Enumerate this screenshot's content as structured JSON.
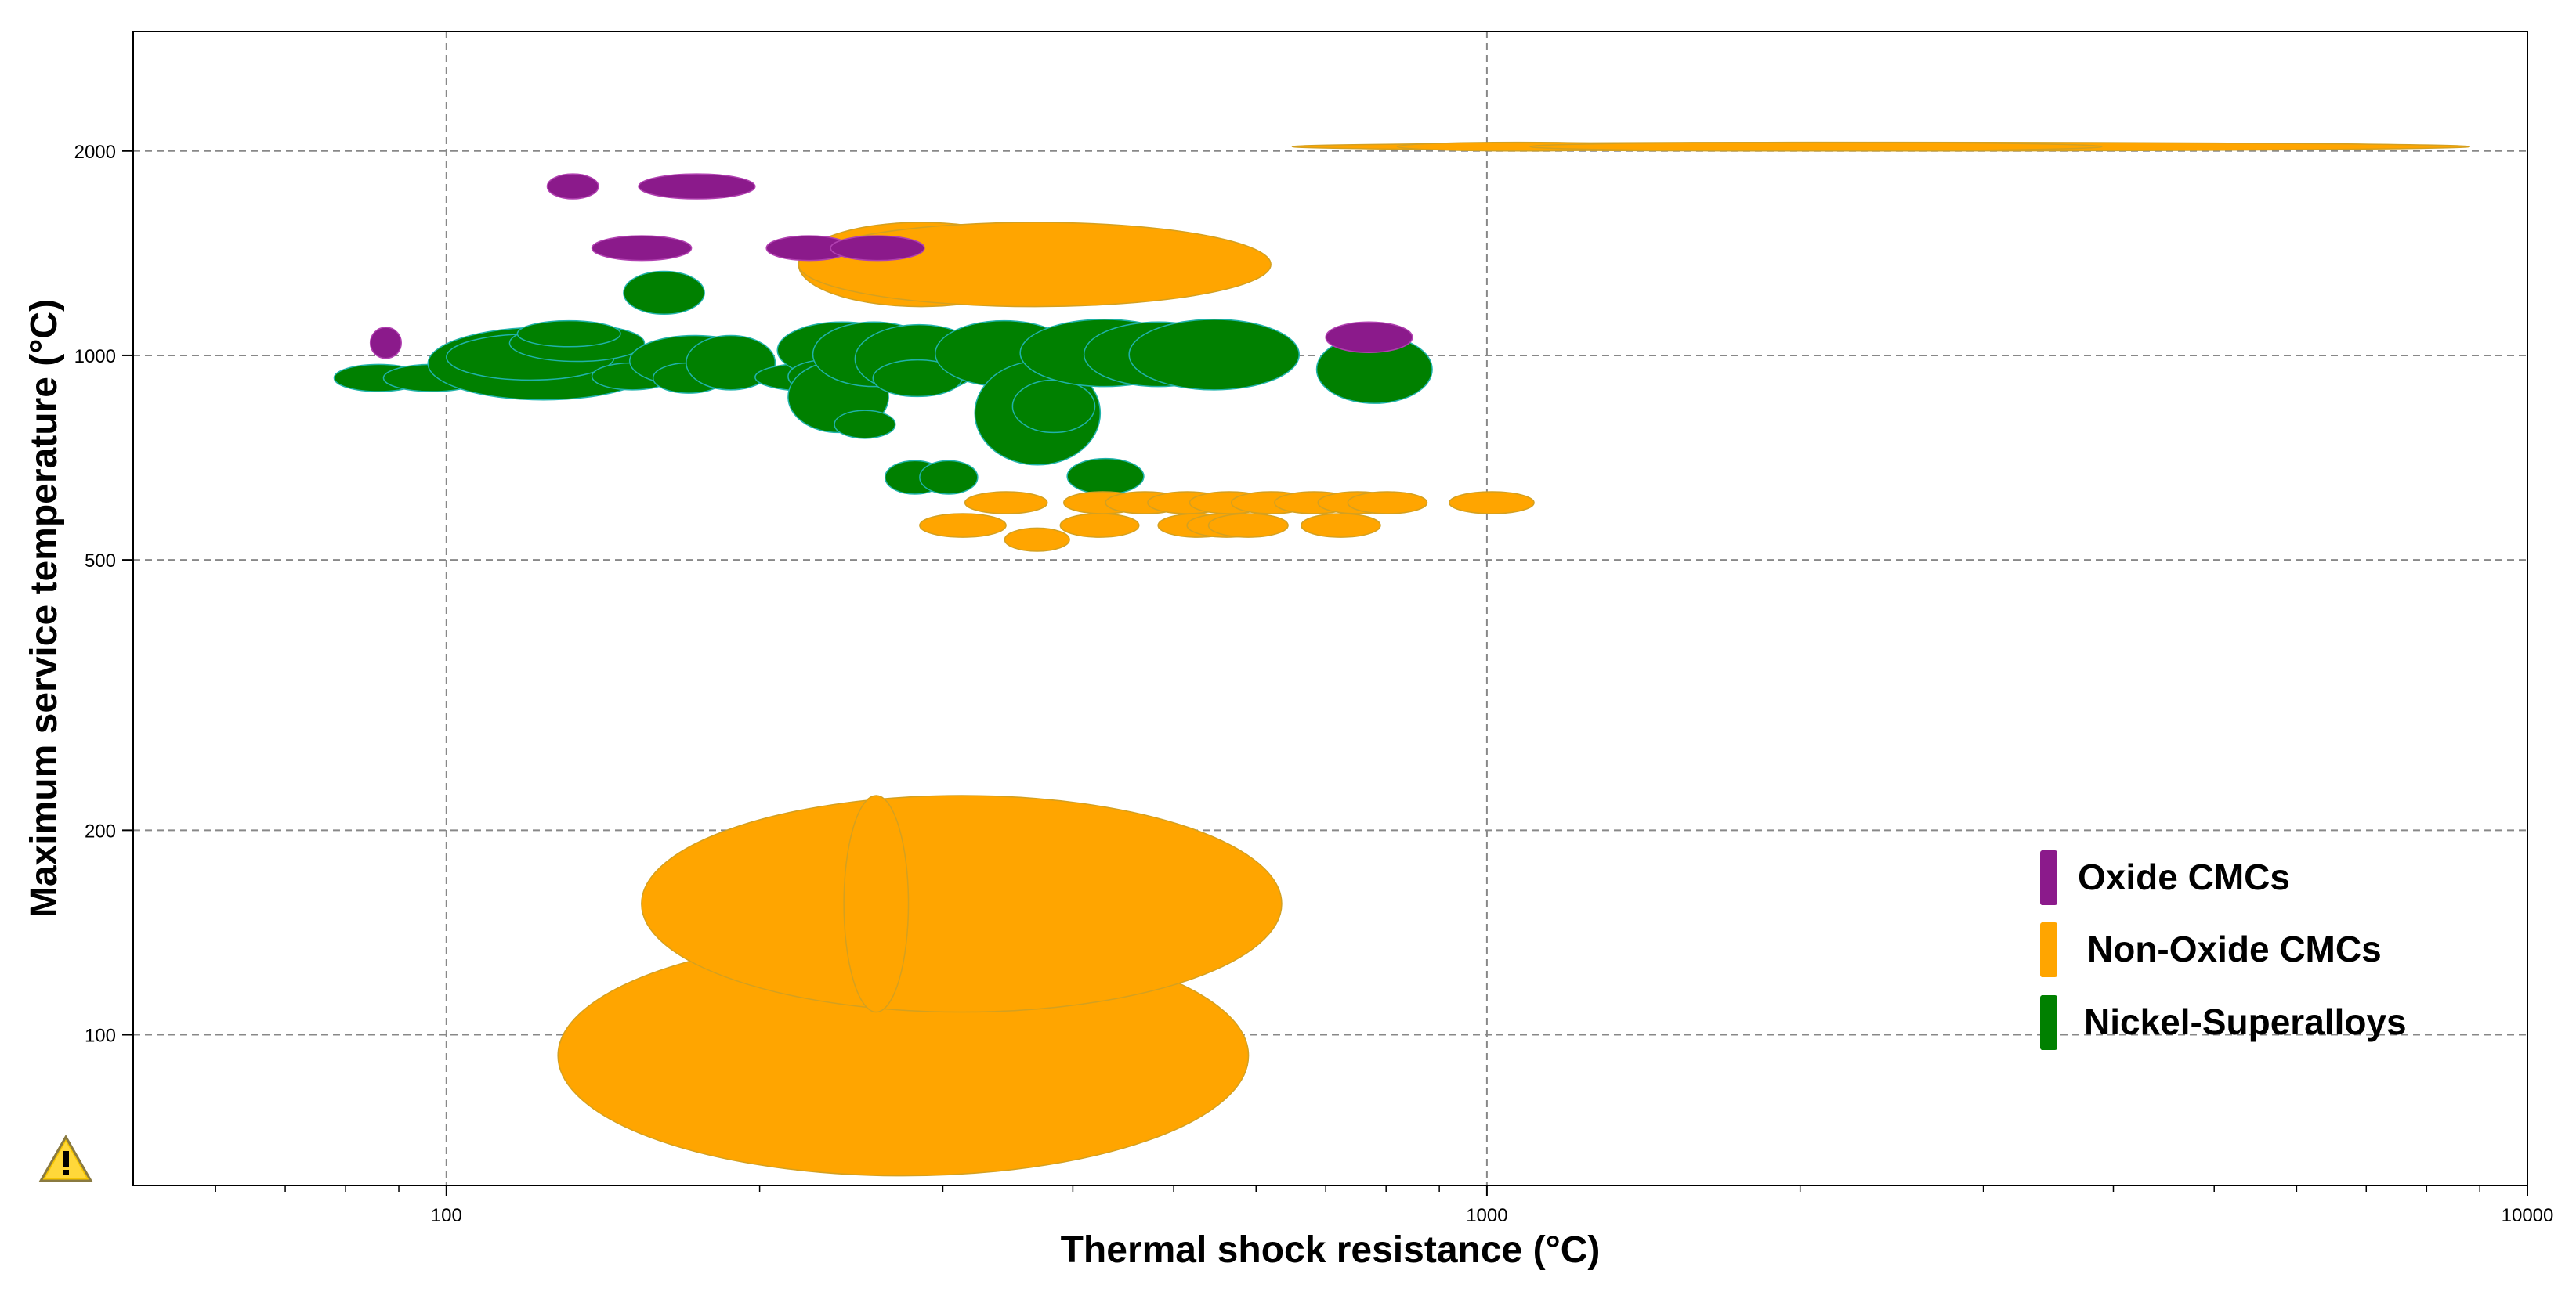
{
  "chart_data": {
    "type": "scatter",
    "xlabel": "Thermal shock resistance (°C)",
    "ylabel": "Maximum service temperature (°C)",
    "x_scale": "log",
    "y_scale": "log",
    "xlim": [
      50,
      10000
    ],
    "ylim": [
      60,
      3000
    ],
    "x_ticks": [
      {
        "value": 100,
        "label": "100"
      },
      {
        "value": 1000,
        "label": "1000"
      },
      {
        "value": 10000,
        "label": "10000"
      }
    ],
    "y_ticks": [
      {
        "value": 100,
        "label": "100"
      },
      {
        "value": 200,
        "label": "200"
      },
      {
        "value": 500,
        "label": "500"
      },
      {
        "value": 1000,
        "label": "1000"
      },
      {
        "value": 2000,
        "label": "2000"
      }
    ],
    "grid": true,
    "legend_position": "bottom-right",
    "warning_icon": "warning-icon",
    "series": [
      {
        "name": "Nickel-Superalloys",
        "color": "#008000",
        "stroke": "#20b2aa",
        "regions": [
          {
            "x": [
              78,
              95
            ],
            "y": [
              885,
              970
            ]
          },
          {
            "x": [
              87,
              108
            ],
            "y": [
              885,
              970
            ]
          },
          {
            "x": [
              96,
              160
            ],
            "y": [
              860,
              1100
            ]
          },
          {
            "x": [
              100,
              145
            ],
            "y": [
              920,
              1075
            ]
          },
          {
            "x": [
              115,
              155
            ],
            "y": [
              980,
              1110
            ]
          },
          {
            "x": [
              117,
              147
            ],
            "y": [
              1030,
              1125
            ]
          },
          {
            "x": [
              138,
              165
            ],
            "y": [
              890,
              975
            ]
          },
          {
            "x": [
              148,
              177
            ],
            "y": [
              1150,
              1330
            ]
          },
          {
            "x": [
              150,
              200
            ],
            "y": [
              900,
              1070
            ]
          },
          {
            "x": [
              158,
              185
            ],
            "y": [
              880,
              975
            ]
          },
          {
            "x": [
              170,
              207
            ],
            "y": [
              890,
              1070
            ]
          },
          {
            "x": [
              198,
              257
            ],
            "y": [
              885,
              975
            ]
          },
          {
            "x": [
              208,
              277
            ],
            "y": [
              925,
              1120
            ]
          },
          {
            "x": [
              213,
              253
            ],
            "y": [
              880,
              985
            ]
          },
          {
            "x": [
              213,
              266
            ],
            "y": [
              770,
              980
            ]
          },
          {
            "x": [
              225,
              295
            ],
            "y": [
              900,
              1120
            ]
          },
          {
            "x": [
              236,
              270
            ],
            "y": [
              755,
              830
            ]
          },
          {
            "x": [
              247,
              328
            ],
            "y": [
              880,
              1110
            ]
          },
          {
            "x": [
              257,
              313
            ],
            "y": [
              870,
              985
            ]
          },
          {
            "x": [
              264,
              301
            ],
            "y": [
              625,
              700
            ]
          },
          {
            "x": [
              285,
              324
            ],
            "y": [
              625,
              700
            ]
          },
          {
            "x": [
              295,
              400
            ],
            "y": [
              900,
              1125
            ]
          },
          {
            "x": [
              322,
              425
            ],
            "y": [
              690,
              980
            ]
          },
          {
            "x": [
              350,
              420
            ],
            "y": [
              770,
              920
            ]
          },
          {
            "x": [
              356,
              517
            ],
            "y": [
              900,
              1130
            ]
          },
          {
            "x": [
              395,
              468
            ],
            "y": [
              625,
              705
            ]
          },
          {
            "x": [
              410,
              570
            ],
            "y": [
              900,
              1120
            ]
          },
          {
            "x": [
              453,
              660
            ],
            "y": [
              890,
              1130
            ]
          },
          {
            "x": [
              686,
              886
            ],
            "y": [
              850,
              1070
            ]
          }
        ]
      },
      {
        "name": "Non-Oxide CMCs",
        "color": "#ffa500",
        "stroke": "#d4a020",
        "regions": [
          {
            "x": [
              218,
              375
            ],
            "y": [
              1180,
              1570
            ]
          },
          {
            "x": [
              218,
              620
            ],
            "y": [
              1180,
              1570
            ]
          },
          {
            "x": [
              128,
              590
            ],
            "y": [
              62,
              140
            ]
          },
          {
            "x": [
              154,
              635
            ],
            "y": [
              108,
              225
            ]
          },
          {
            "x": [
              241,
              278
            ],
            "y": [
              108,
              225
            ]
          },
          {
            "x": [
              650,
              8800
            ],
            "y": [
              2000,
              2060
            ]
          },
          {
            "x": [
              820,
              1400
            ],
            "y": [
              2000,
              2060
            ]
          },
          {
            "x": [
              1100,
              3900
            ],
            "y": [
              2000,
              2060
            ]
          },
          {
            "x": [
              285,
              345
            ],
            "y": [
              540,
              585
            ]
          },
          {
            "x": [
              315,
              378
            ],
            "y": [
              585,
              630
            ]
          },
          {
            "x": [
              344,
              397
            ],
            "y": [
              515,
              557
            ]
          },
          {
            "x": [
              389,
              463
            ],
            "y": [
              540,
              585
            ]
          },
          {
            "x": [
              392,
              466
            ],
            "y": [
              585,
              630
            ]
          },
          {
            "x": [
              430,
              512
            ],
            "y": [
              585,
              630
            ]
          },
          {
            "x": [
              472,
              563
            ],
            "y": [
              585,
              630
            ]
          },
          {
            "x": [
              483,
              575
            ],
            "y": [
              540,
              585
            ]
          },
          {
            "x": [
              515,
              614
            ],
            "y": [
              540,
              585
            ]
          },
          {
            "x": [
              518,
              617
            ],
            "y": [
              585,
              630
            ]
          },
          {
            "x": [
              540,
              644
            ],
            "y": [
              540,
              585
            ]
          },
          {
            "x": [
              568,
              677
            ],
            "y": [
              585,
              630
            ]
          },
          {
            "x": [
              625,
              745
            ],
            "y": [
              585,
              630
            ]
          },
          {
            "x": [
              663,
              790
            ],
            "y": [
              540,
              585
            ]
          },
          {
            "x": [
              688,
              820
            ],
            "y": [
              585,
              630
            ]
          },
          {
            "x": [
              735,
              876
            ],
            "y": [
              585,
              630
            ]
          },
          {
            "x": [
              920,
              1110
            ],
            "y": [
              585,
              630
            ]
          }
        ]
      },
      {
        "name": "Oxide CMCs",
        "color": "#8b1a8b",
        "stroke": "#b040b0",
        "regions": [
          {
            "x": [
              84.5,
              90.5
            ],
            "y": [
              990,
              1100
            ]
          },
          {
            "x": [
              125,
              140
            ],
            "y": [
              1700,
              1850
            ]
          },
          {
            "x": [
              153,
              198
            ],
            "y": [
              1700,
              1850
            ]
          },
          {
            "x": [
              138,
              172
            ],
            "y": [
              1380,
              1500
            ]
          },
          {
            "x": [
              203,
              245
            ],
            "y": [
              1380,
              1500
            ]
          },
          {
            "x": [
              234,
              288
            ],
            "y": [
              1380,
              1500
            ]
          },
          {
            "x": [
              700,
              848
            ],
            "y": [
              1010,
              1120
            ]
          }
        ]
      }
    ]
  }
}
